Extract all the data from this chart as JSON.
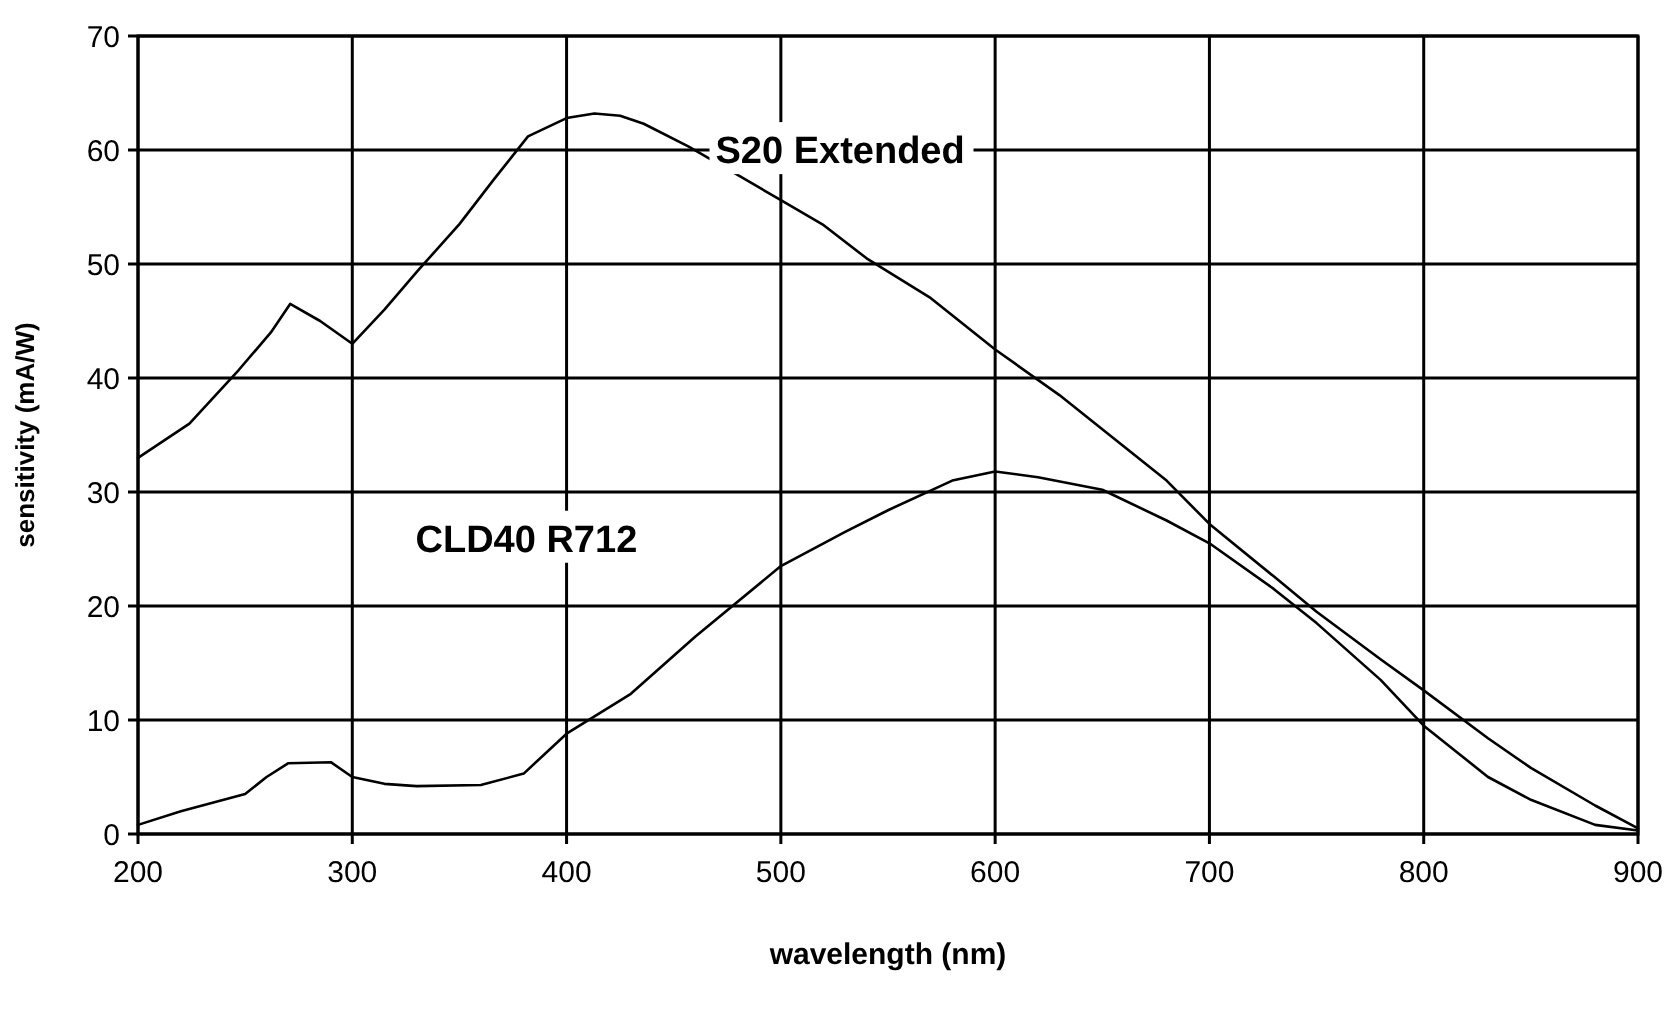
{
  "chart_data": {
    "type": "line",
    "xlabel": "wavelength (nm)",
    "ylabel": "sensitivity (mA/W)",
    "xlim": [
      200,
      900
    ],
    "ylim": [
      0,
      70
    ],
    "xticks": [
      200,
      300,
      400,
      500,
      600,
      700,
      800,
      900
    ],
    "yticks": [
      0,
      10,
      20,
      30,
      40,
      50,
      60,
      70
    ],
    "grid": true,
    "legend": false,
    "marker": "none",
    "line_style": "solid",
    "series": [
      {
        "name": "S20 Extended",
        "color": "#000000",
        "x": [
          200,
          224,
          247,
          262,
          271,
          285,
          300,
          315,
          331,
          350,
          366,
          382,
          400,
          413,
          425,
          436,
          457,
          479,
          500,
          520,
          540,
          570,
          600,
          630,
          650,
          680,
          700,
          730,
          750,
          780,
          800,
          830,
          850,
          880,
          900
        ],
        "values": [
          33,
          36,
          40.7,
          44,
          46.5,
          45,
          43,
          46,
          49.5,
          53.5,
          57.4,
          61.2,
          62.8,
          63.2,
          63,
          62.3,
          60.3,
          57.9,
          55.6,
          53.4,
          50.5,
          47,
          42.5,
          38.5,
          35.5,
          31,
          27.2,
          22.6,
          19.5,
          15.3,
          12.6,
          8.4,
          5.8,
          2.5,
          0.5
        ]
      },
      {
        "name": "CLD40 R712",
        "color": "#000000",
        "x": [
          200,
          220,
          240,
          250,
          260,
          270,
          290,
          300,
          315,
          330,
          360,
          380,
          400,
          430,
          460,
          500,
          530,
          550,
          580,
          600,
          620,
          650,
          680,
          700,
          730,
          750,
          780,
          800,
          830,
          850,
          880,
          900
        ],
        "values": [
          0.8,
          2,
          3,
          3.5,
          5,
          6.2,
          6.3,
          5,
          4.4,
          4.2,
          4.3,
          5.3,
          8.8,
          12.3,
          17.3,
          23.5,
          26.5,
          28.4,
          31,
          31.8,
          31.3,
          30.2,
          27.5,
          25.5,
          21.5,
          18.5,
          13.5,
          9.5,
          5,
          3,
          0.8,
          0.3
        ]
      }
    ]
  }
}
